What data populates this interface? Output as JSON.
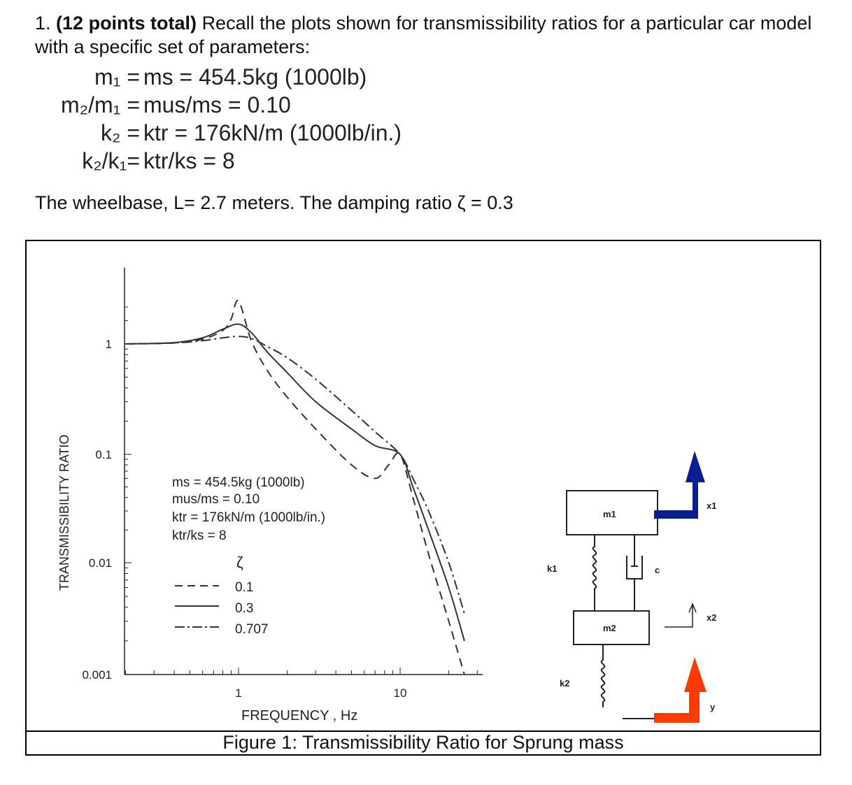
{
  "problem": {
    "number": "1.",
    "points": "(12 points total)",
    "text": "Recall the plots shown for transmissibility ratios for a particular car model with a specific set of parameters:"
  },
  "params": [
    {
      "lhs": "m₁ =",
      "rhs": "ms = 454.5kg (1000lb)"
    },
    {
      "lhs": "m₂/m₁ =",
      "rhs": "mus/ms = 0.10"
    },
    {
      "lhs": "k₂ =",
      "rhs": "ktr = 176kN/m (1000lb/in.)"
    },
    {
      "lhs": "k₂/k₁=",
      "rhs": "ktr/ks = 8"
    }
  ],
  "wheelbase_text": "The wheelbase, L= 2.7 meters.  The damping ratio ζ = 0.3",
  "figure": {
    "caption": "Figure 1: Transmissibility Ratio for Sprung mass",
    "legend_params": [
      "ms = 454.5kg (1000lb)",
      "mus/ms = 0.10",
      "ktr = 176kN/m (1000lb/in.)",
      "ktr/ks = 8"
    ],
    "legend_symbol": "ζ",
    "legend_entries": [
      "0.1",
      "0.3",
      "0.707"
    ],
    "diagram_labels": {
      "m1": "m1",
      "m2": "m2",
      "k1": "k1",
      "k2": "k2",
      "c": "c",
      "x1": "x1",
      "x2": "x2",
      "y": "y"
    },
    "arrow_colors": {
      "x1": "#0a1f8f",
      "y": "#ff3a00"
    }
  },
  "chart_data": {
    "type": "line",
    "xlabel": "FREQUENCY , Hz",
    "ylabel": "TRANSMISSIBILITY RATIO",
    "x_scale": "log",
    "y_scale": "log",
    "xlim": [
      0.15,
      30
    ],
    "ylim": [
      0.001,
      10
    ],
    "x_tick_labels": [
      "1",
      "10"
    ],
    "y_tick_labels": [
      "1",
      "0.1",
      "0.01",
      "0.001"
    ],
    "legend_title": "ζ",
    "series": [
      {
        "name": "0.1",
        "style": "dashed",
        "x": [
          0.2,
          0.4,
          0.6,
          0.8,
          0.9,
          1.0,
          1.2,
          1.5,
          2.0,
          3.0,
          5.0,
          7.0,
          8.5,
          10,
          12,
          15,
          20,
          25
        ],
        "y": [
          1.0,
          1.03,
          1.15,
          1.5,
          2.1,
          3.6,
          1.1,
          0.58,
          0.33,
          0.17,
          0.08,
          0.06,
          0.08,
          0.1,
          0.04,
          0.012,
          0.003,
          0.001
        ]
      },
      {
        "name": "0.3",
        "style": "solid",
        "x": [
          0.2,
          0.4,
          0.6,
          0.8,
          1.0,
          1.2,
          1.5,
          2.0,
          3.0,
          5.0,
          7.0,
          10,
          12,
          15,
          20,
          25
        ],
        "y": [
          1.0,
          1.04,
          1.2,
          1.55,
          1.8,
          1.4,
          0.85,
          0.55,
          0.3,
          0.17,
          0.12,
          0.1,
          0.05,
          0.02,
          0.006,
          0.002
        ]
      },
      {
        "name": "0.707",
        "style": "dashdot",
        "x": [
          0.2,
          0.4,
          0.6,
          0.8,
          1.0,
          1.2,
          1.5,
          2.0,
          3.0,
          5.0,
          7.0,
          10,
          12,
          15,
          20,
          25
        ],
        "y": [
          1.0,
          1.03,
          1.1,
          1.2,
          1.25,
          1.18,
          0.95,
          0.75,
          0.48,
          0.25,
          0.16,
          0.1,
          0.06,
          0.03,
          0.01,
          0.0035
        ]
      }
    ]
  }
}
